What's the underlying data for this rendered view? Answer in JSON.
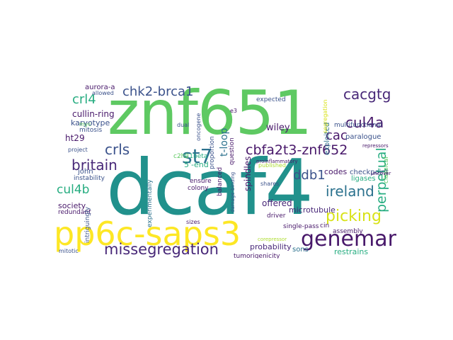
{
  "palette": {
    "deep_purple": "#48186a",
    "purple": "#482878",
    "indigo": "#3b528b",
    "slate_blue": "#355f8d",
    "blue": "#2c728e",
    "teal": "#21918c",
    "sea_green": "#27ad81",
    "green": "#5ec962",
    "lime": "#addc30",
    "yellow": "#d8e219",
    "bright_yellow": "#fde725"
  },
  "words": [
    {
      "text": "znf651",
      "color": "#5ec962"
    },
    {
      "text": "dcaf4",
      "color": "#21918c"
    },
    {
      "text": "pp6c-saps3",
      "color": "#fde725"
    },
    {
      "text": "genemark",
      "color": "#48186a"
    },
    {
      "text": "missegregation",
      "color": "#482878"
    },
    {
      "text": "st7",
      "color": "#2c728e"
    },
    {
      "text": "cbfa2t3-znf652",
      "color": "#48186a"
    },
    {
      "text": "chk2-brca1",
      "color": "#3b528b"
    },
    {
      "text": "cacgtg",
      "color": "#482878"
    },
    {
      "text": "cul4a",
      "color": "#48186a"
    },
    {
      "text": "ireland",
      "color": "#2c728e"
    },
    {
      "text": "picking",
      "color": "#d8e219"
    },
    {
      "text": "britain",
      "color": "#482878"
    },
    {
      "text": "crls",
      "color": "#3b528b"
    },
    {
      "text": "crl4",
      "color": "#27ad81"
    },
    {
      "text": "cul4b",
      "color": "#27ad81"
    },
    {
      "text": "ddb1",
      "color": "#3b528b"
    },
    {
      "text": "cac",
      "color": "#48186a"
    },
    {
      "text": "perpetual",
      "color": "#27ad81"
    },
    {
      "text": "t-loop",
      "color": "#2c728e"
    },
    {
      "text": "cullin-ring",
      "color": "#48186a"
    },
    {
      "text": "karyotype",
      "color": "#3b528b"
    },
    {
      "text": "aurora-a",
      "color": "#48186a"
    },
    {
      "text": "ht29",
      "color": "#48186a"
    },
    {
      "text": "wiley",
      "color": "#48186a"
    },
    {
      "text": "offered",
      "color": "#482878"
    },
    {
      "text": "probability",
      "color": "#482878"
    },
    {
      "text": "spindles",
      "color": "#48186a"
    },
    {
      "text": "5'-end",
      "color": "#27ad81"
    },
    {
      "text": "john",
      "color": "#3b528b"
    },
    {
      "text": "il-1beta",
      "color": "#27ad81"
    },
    {
      "text": "exploited",
      "color": "#2c728e"
    },
    {
      "text": "codes",
      "color": "#48186a"
    },
    {
      "text": "microtubule",
      "color": "#482878"
    },
    {
      "text": "society",
      "color": "#48186a"
    },
    {
      "text": "restrains",
      "color": "#27ad81"
    },
    {
      "text": "sons",
      "color": "#2c728e"
    },
    {
      "text": "paralogue",
      "color": "#3b528b"
    },
    {
      "text": "c2h2",
      "color": "#5ec962"
    },
    {
      "text": "checkpoint",
      "color": "#3b528b"
    },
    {
      "text": "ligases",
      "color": "#27ad81"
    },
    {
      "text": "proportion",
      "color": "#3b528b"
    },
    {
      "text": "tumorigenicity",
      "color": "#48186a"
    },
    {
      "text": "question",
      "color": "#48186a"
    },
    {
      "text": "multifunctional",
      "color": "#3b528b"
    },
    {
      "text": "experimentally",
      "color": "#2c728e"
    },
    {
      "text": "instability",
      "color": "#3b528b"
    },
    {
      "text": "redundant",
      "color": "#48186a"
    },
    {
      "text": "allowed",
      "color": "#3b528b"
    },
    {
      "text": "oncogene",
      "color": "#3b528b"
    },
    {
      "text": "mitosis",
      "color": "#3b528b"
    },
    {
      "text": "colony",
      "color": "#48186a"
    },
    {
      "text": "balanced",
      "color": "#48186a"
    },
    {
      "text": "ensure",
      "color": "#48186a"
    },
    {
      "text": "expected",
      "color": "#3b528b"
    },
    {
      "text": "published",
      "color": "#addc30"
    },
    {
      "text": "driver",
      "color": "#48186a"
    },
    {
      "text": "assembly",
      "color": "#48186a"
    },
    {
      "text": "single-pass",
      "color": "#48186a"
    },
    {
      "text": "classical",
      "color": "#5ec962"
    },
    {
      "text": "intriguingly",
      "color": "#3b528b"
    },
    {
      "text": "mitotic",
      "color": "#3b528b"
    },
    {
      "text": "cin",
      "color": "#48186a"
    },
    {
      "text": "shares",
      "color": "#3b528b"
    },
    {
      "text": "dual",
      "color": "#3b528b"
    },
    {
      "text": "myc",
      "color": "#5ec962"
    },
    {
      "text": "project",
      "color": "#3b528b"
    },
    {
      "text": "e3",
      "color": "#48186a"
    },
    {
      "text": "damage-binding",
      "color": "#3b528b"
    },
    {
      "text": "corepressor",
      "color": "#addc30"
    },
    {
      "text": "sizes",
      "color": "#48186a"
    },
    {
      "text": "proinflammatory",
      "color": "#48186a"
    },
    {
      "text": "repressors",
      "color": "#48186a"
    },
    {
      "text": "segregation",
      "color": "#d8e219"
    },
    {
      "text": "uncover",
      "color": "#48186a"
    }
  ]
}
